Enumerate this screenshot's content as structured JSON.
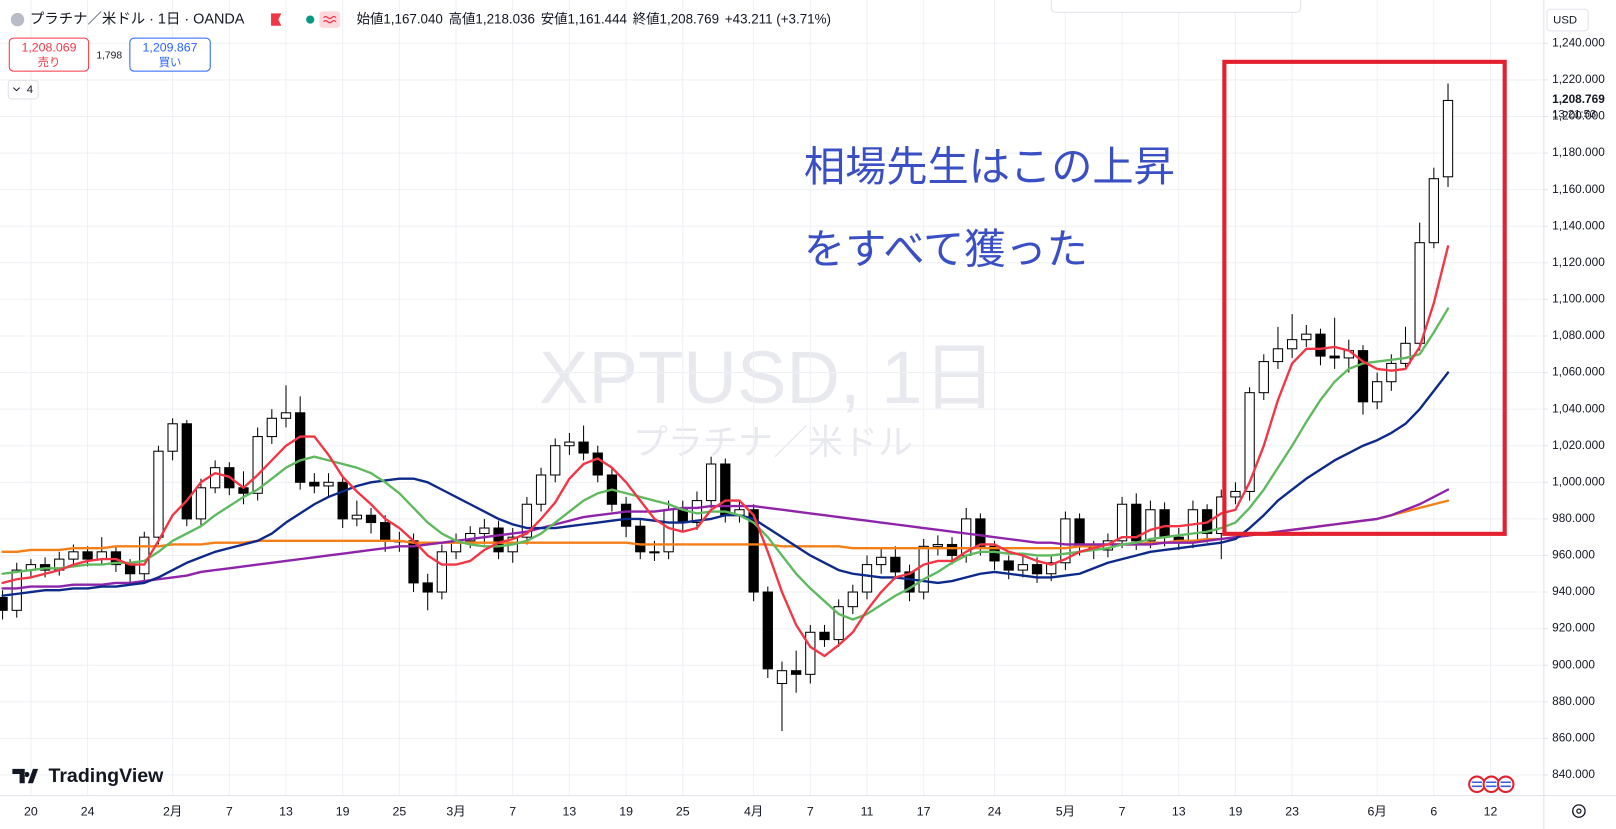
{
  "header": {
    "symbol": "プラチナ／米ドル · 1日 · OANDA",
    "ohlc": [
      {
        "label": "始値",
        "value": "1,167.040"
      },
      {
        "label": "高値",
        "value": "1,218.036"
      },
      {
        "label": "安値",
        "value": "1,161.444"
      },
      {
        "label": "終値",
        "value": "1,208.769"
      }
    ],
    "change": "+43.211 (+3.71%)"
  },
  "trade": {
    "sell_price": "1,208.069",
    "sell_label": "売り",
    "spread": "1,798",
    "buy_price": "1,209.867",
    "buy_label": "買い"
  },
  "indicators_count": "4",
  "watermark": {
    "symbol": "XPTUSD, 1日",
    "description": "プラチナ／米ドル"
  },
  "price_axis": {
    "currency": "USD",
    "last_price": "1,208.769",
    "countdown": "13:21:53"
  },
  "branding": "TradingView",
  "chart_data": {
    "type": "candlestick",
    "annotation": {
      "lines": [
        "相場先生はこの上昇",
        "をすべて獲った"
      ],
      "color": "#3b4fc4",
      "box_color": "#e3202e"
    },
    "categories": [
      null,
      null,
      "20",
      null,
      null,
      null,
      "24",
      null,
      null,
      null,
      null,
      null,
      "2月",
      null,
      null,
      null,
      "7",
      null,
      null,
      null,
      "13",
      null,
      null,
      null,
      "19",
      null,
      null,
      null,
      "25",
      null,
      null,
      null,
      "3月",
      null,
      null,
      null,
      "7",
      null,
      null,
      null,
      "13",
      null,
      null,
      null,
      "19",
      null,
      null,
      null,
      "25",
      null,
      null,
      null,
      null,
      "4月",
      null,
      null,
      null,
      "7",
      null,
      null,
      null,
      "11",
      null,
      null,
      null,
      "17",
      null,
      null,
      null,
      null,
      "24",
      null,
      null,
      null,
      null,
      "5月",
      null,
      null,
      null,
      "7",
      null,
      null,
      null,
      "13",
      null,
      null,
      null,
      "19",
      null,
      null,
      null,
      "23",
      null,
      null,
      null,
      null,
      null,
      "6月",
      null,
      null,
      null,
      "6",
      null,
      null,
      null,
      "12"
    ],
    "open": [
      937,
      930,
      952,
      955,
      952,
      958,
      962,
      958,
      962,
      955,
      950,
      970,
      1017,
      1032,
      980,
      997,
      1008,
      997,
      994,
      1025,
      1035,
      1038,
      1000,
      998,
      1000,
      980,
      982,
      978,
      968,
      968,
      945,
      940,
      962,
      968,
      972,
      975,
      962,
      970,
      988,
      1004,
      1020,
      1022,
      1016,
      1004,
      988,
      976,
      962,
      962,
      985,
      978,
      990,
      1010,
      982,
      985,
      940,
      890,
      897,
      895,
      918,
      914,
      932,
      940,
      955,
      959,
      951,
      940,
      965,
      966,
      960,
      980,
      965,
      957,
      952,
      955,
      950,
      956,
      980,
      965,
      963,
      968,
      988,
      968,
      985,
      970,
      968,
      985,
      972,
      992,
      995,
      1049,
      1066,
      1073,
      1078,
      1081,
      1069,
      1068,
      1072,
      1044,
      1055,
      1065,
      1076,
      1131,
      1167.04,
      null,
      null,
      null
    ],
    "high": [
      941,
      956,
      958,
      959,
      962,
      966,
      965,
      970,
      965,
      958,
      973,
      1020,
      1035,
      1034,
      1002,
      1012,
      1011,
      1006,
      1030,
      1040,
      1053,
      1047,
      1005,
      1005,
      1003,
      990,
      986,
      982,
      973,
      972,
      950,
      966,
      972,
      976,
      980,
      979,
      975,
      992,
      1008,
      1024,
      1027,
      1031,
      1020,
      1008,
      992,
      980,
      968,
      990,
      990,
      995,
      1014,
      1013,
      990,
      988,
      943,
      902,
      908,
      922,
      922,
      936,
      944,
      960,
      964,
      965,
      955,
      969,
      971,
      970,
      986,
      983,
      968,
      960,
      960,
      959,
      960,
      984,
      983,
      968,
      972,
      992,
      994,
      990,
      989,
      975,
      990,
      988,
      996,
      1000,
      1052,
      1070,
      1085,
      1092,
      1086,
      1084,
      1090,
      1078,
      1075,
      1060,
      1070,
      1085,
      1142,
      1172,
      1218.036,
      null,
      null,
      null
    ],
    "low": [
      925,
      926,
      948,
      948,
      949,
      955,
      954,
      955,
      951,
      944,
      946,
      966,
      1012,
      976,
      976,
      994,
      993,
      988,
      990,
      1021,
      1030,
      996,
      994,
      992,
      975,
      976,
      972,
      962,
      962,
      940,
      930,
      936,
      958,
      964,
      966,
      958,
      956,
      966,
      984,
      1000,
      1015,
      1012,
      1000,
      984,
      970,
      958,
      957,
      958,
      973,
      974,
      986,
      978,
      978,
      935,
      893,
      864,
      885,
      890,
      910,
      910,
      928,
      936,
      950,
      947,
      935,
      936,
      960,
      955,
      956,
      960,
      952,
      947,
      948,
      945,
      946,
      952,
      960,
      958,
      959,
      964,
      963,
      964,
      965,
      963,
      964,
      967,
      958,
      988,
      990,
      1045,
      1062,
      1068,
      1074,
      1064,
      1062,
      1060,
      1037,
      1040,
      1050,
      1062,
      1072,
      1128,
      1161.444,
      null,
      null,
      null
    ],
    "close": [
      930,
      952,
      955,
      952,
      958,
      962,
      958,
      962,
      955,
      950,
      970,
      1017,
      1032,
      980,
      997,
      1008,
      997,
      994,
      1025,
      1035,
      1038,
      1000,
      998,
      1000,
      980,
      982,
      978,
      968,
      968,
      945,
      940,
      962,
      968,
      972,
      975,
      962,
      970,
      988,
      1004,
      1020,
      1022,
      1016,
      1004,
      988,
      976,
      962,
      962,
      985,
      978,
      990,
      1010,
      982,
      985,
      940,
      898,
      897,
      895,
      918,
      914,
      932,
      940,
      955,
      959,
      951,
      940,
      965,
      966,
      960,
      980,
      965,
      957,
      952,
      955,
      950,
      956,
      980,
      965,
      963,
      968,
      988,
      968,
      985,
      970,
      968,
      985,
      972,
      992,
      995,
      1049,
      1066,
      1073,
      1078,
      1081,
      1069,
      1068,
      1072,
      1044,
      1055,
      1065,
      1076,
      1131,
      1166,
      1208.769,
      null,
      null,
      null
    ],
    "candle_colors": {
      "up": "#ffffff",
      "down": "#000000",
      "border": "#000000"
    },
    "series": [
      {
        "color": "#f57f17",
        "values": [
          962,
          962,
          963,
          963,
          963,
          964,
          964,
          964,
          965,
          965,
          965,
          965,
          966,
          966,
          966,
          967,
          967,
          967,
          968,
          968,
          968,
          968,
          968,
          968,
          968,
          968,
          968,
          968,
          968,
          967,
          967,
          967,
          967,
          967,
          967,
          967,
          967,
          967,
          967,
          967,
          967,
          967,
          967,
          967,
          967,
          966,
          966,
          966,
          966,
          966,
          966,
          966,
          966,
          966,
          966,
          965,
          965,
          965,
          965,
          965,
          964,
          964,
          964,
          964,
          964,
          964,
          964,
          964,
          964,
          964,
          964,
          964,
          964,
          964,
          964,
          964,
          965,
          965,
          966,
          966,
          966,
          967,
          967,
          968,
          968,
          969,
          969,
          970,
          971,
          972,
          973,
          974,
          975,
          976,
          977,
          978,
          979,
          980,
          982,
          984,
          986,
          988,
          990,
          null,
          null,
          null
        ]
      },
      {
        "color": "#8e24aa",
        "values": [
          942,
          942,
          943,
          943,
          943,
          944,
          944,
          944,
          945,
          945,
          946,
          947,
          948,
          949,
          951,
          952,
          953,
          954,
          955,
          956,
          957,
          958,
          959,
          960,
          961,
          962,
          963,
          964,
          965,
          965,
          966,
          967,
          968,
          969,
          970,
          971,
          972,
          973,
          975,
          977,
          979,
          981,
          982,
          983,
          984,
          984,
          984,
          985,
          986,
          986,
          987,
          987,
          987,
          987,
          986,
          985,
          984,
          983,
          982,
          981,
          980,
          979,
          978,
          977,
          976,
          975,
          974,
          973,
          972,
          971,
          970,
          969,
          968,
          967,
          967,
          966,
          966,
          966,
          966,
          966,
          966,
          966,
          967,
          967,
          967,
          968,
          969,
          970,
          971,
          972,
          973,
          974,
          975,
          976,
          977,
          978,
          979,
          980,
          982,
          985,
          988,
          992,
          996,
          null,
          null,
          null
        ]
      },
      {
        "color": "#0d2a8a",
        "values": [
          938,
          939,
          940,
          941,
          941,
          942,
          942,
          943,
          943,
          944,
          945,
          948,
          952,
          956,
          959,
          962,
          964,
          966,
          968,
          972,
          978,
          983,
          988,
          992,
          995,
          998,
          1000,
          1001,
          1002,
          1002,
          1000,
          996,
          992,
          988,
          984,
          980,
          977,
          975,
          975,
          975,
          976,
          977,
          978,
          979,
          980,
          980,
          979,
          978,
          978,
          979,
          980,
          982,
          982,
          980,
          975,
          970,
          965,
          960,
          956,
          952,
          950,
          949,
          948,
          948,
          947,
          946,
          945,
          946,
          948,
          950,
          951,
          950,
          949,
          948,
          948,
          949,
          950,
          953,
          956,
          958,
          960,
          962,
          963,
          964,
          965,
          966,
          967,
          969,
          975,
          982,
          990,
          996,
          1002,
          1007,
          1012,
          1016,
          1020,
          1023,
          1027,
          1032,
          1040,
          1050,
          1060,
          null,
          null,
          null
        ]
      },
      {
        "color": "#5fba5f",
        "values": [
          950,
          951,
          952,
          953,
          953,
          954,
          955,
          955,
          956,
          956,
          957,
          962,
          968,
          972,
          976,
          982,
          987,
          992,
          996,
          1002,
          1008,
          1012,
          1014,
          1012,
          1010,
          1008,
          1005,
          1000,
          994,
          986,
          978,
          972,
          968,
          966,
          965,
          965,
          966,
          968,
          972,
          978,
          984,
          990,
          994,
          996,
          994,
          992,
          990,
          988,
          985,
          983,
          984,
          984,
          982,
          978,
          970,
          960,
          950,
          942,
          935,
          928,
          925,
          928,
          933,
          938,
          942,
          947,
          951,
          956,
          960,
          962,
          962,
          961,
          961,
          960,
          960,
          961,
          962,
          963,
          964,
          966,
          967,
          969,
          970,
          971,
          972,
          973,
          975,
          978,
          986,
          996,
          1008,
          1020,
          1033,
          1045,
          1055,
          1062,
          1065,
          1066,
          1067,
          1068,
          1070,
          1082,
          1095,
          null,
          null,
          null
        ]
      },
      {
        "color": "#f23645",
        "values": [
          945,
          947,
          948,
          950,
          952,
          955,
          957,
          958,
          958,
          955,
          955,
          968,
          982,
          990,
          1000,
          1005,
          1003,
          997,
          1004,
          1012,
          1020,
          1025,
          1025,
          1015,
          1003,
          995,
          988,
          980,
          975,
          968,
          960,
          955,
          955,
          957,
          963,
          967,
          969,
          972,
          980,
          989,
          1002,
          1010,
          1013,
          1008,
          1000,
          990,
          980,
          975,
          973,
          975,
          985,
          990,
          990,
          982,
          962,
          940,
          922,
          910,
          905,
          911,
          918,
          930,
          940,
          948,
          950,
          955,
          957,
          957,
          962,
          966,
          966,
          962,
          960,
          957,
          955,
          958,
          962,
          964,
          966,
          970,
          970,
          974,
          976,
          976,
          977,
          978,
          983,
          985,
          1000,
          1020,
          1045,
          1065,
          1073,
          1073,
          1074,
          1072,
          1066,
          1062,
          1061,
          1062,
          1074,
          1098,
          1129,
          null,
          null,
          null
        ]
      }
    ],
    "ylim": [
      828.7,
      1263.7
    ],
    "yticks": [
      {
        "value": 840,
        "label": "840.000"
      },
      {
        "value": 860,
        "label": "860.000"
      },
      {
        "value": 880,
        "label": "880.000"
      },
      {
        "value": 900,
        "label": "900.000"
      },
      {
        "value": 920,
        "label": "920.000"
      },
      {
        "value": 940,
        "label": "940.000"
      },
      {
        "value": 960,
        "label": "960.000"
      },
      {
        "value": 980,
        "label": "980.000"
      },
      {
        "value": 1000,
        "label": "1,000.000"
      },
      {
        "value": 1020,
        "label": "1,020.000"
      },
      {
        "value": 1040,
        "label": "1,040.000"
      },
      {
        "value": 1060,
        "label": "1,060.000"
      },
      {
        "value": 1080,
        "label": "1,080.000"
      },
      {
        "value": 1100,
        "label": "1,100.000"
      },
      {
        "value": 1120,
        "label": "1,120.000"
      },
      {
        "value": 1140,
        "label": "1,140.000"
      },
      {
        "value": 1160,
        "label": "1,160.000"
      },
      {
        "value": 1180,
        "label": "1,180.000"
      },
      {
        "value": 1200,
        "label": "1,200.000"
      },
      {
        "value": 1220,
        "label": "1,220.000"
      },
      {
        "value": 1240,
        "label": "1,240.000"
      }
    ],
    "grid": true
  }
}
